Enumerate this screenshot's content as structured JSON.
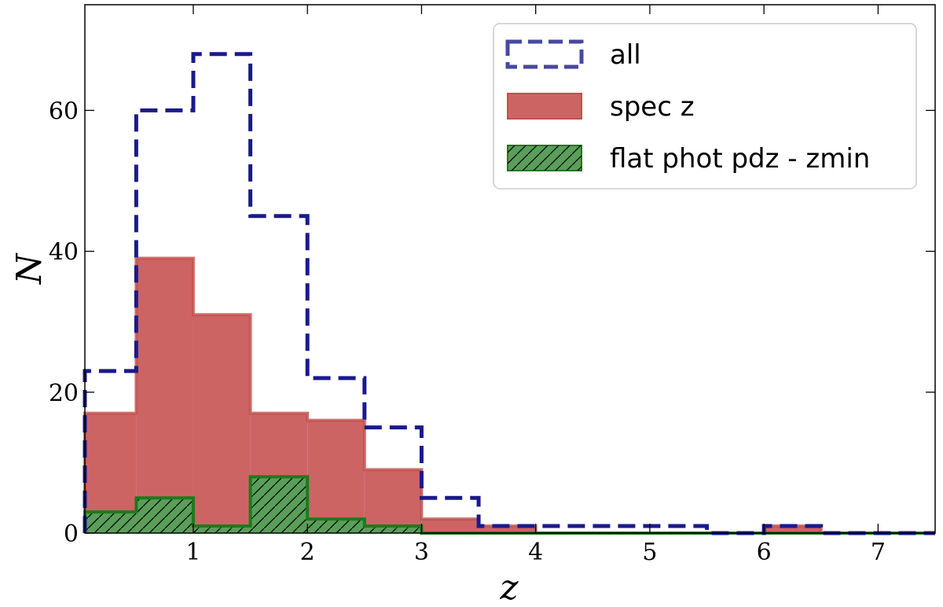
{
  "chart_data": {
    "type": "histogram",
    "xlabel": "z",
    "ylabel": "N",
    "xlim": [
      0.05,
      7.5
    ],
    "ylim": [
      0,
      75
    ],
    "x_ticks": [
      1,
      2,
      3,
      4,
      5,
      6,
      7
    ],
    "y_ticks": [
      0,
      20,
      40,
      60
    ],
    "bin_edges": [
      0.05,
      0.5,
      1.0,
      1.5,
      2.0,
      2.5,
      3.0,
      3.5,
      4.0,
      4.5,
      5.0,
      5.5,
      6.0,
      6.5,
      7.0,
      7.5
    ],
    "legend_position": "top-right",
    "series": [
      {
        "key": "all",
        "name": "all",
        "style": "step-dashed",
        "color": "#1a1a8c",
        "values": [
          23,
          60,
          68,
          45,
          22,
          15,
          5,
          1,
          1,
          1,
          1,
          0,
          1,
          0,
          0
        ]
      },
      {
        "key": "spec",
        "name": "spec z",
        "style": "filled",
        "color": "#c0504d",
        "fill": "#cd6464",
        "values": [
          17,
          39,
          31,
          17,
          16,
          9,
          2,
          1,
          0,
          0,
          0,
          0,
          1,
          0,
          0
        ]
      },
      {
        "key": "flat",
        "name": "flat phot pdz - zmin",
        "style": "filled-hatched",
        "color": "#1e7a1e",
        "fill": "#5a9e5a",
        "values": [
          3,
          5,
          1,
          8,
          2,
          1,
          0,
          0,
          0,
          0,
          0,
          0,
          0,
          0,
          0
        ]
      }
    ]
  }
}
